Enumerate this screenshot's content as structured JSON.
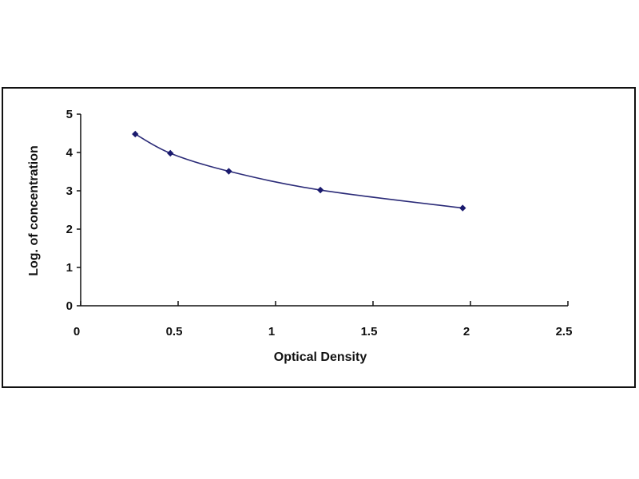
{
  "chart_data": {
    "type": "scatter",
    "xlabel": "Optical Density",
    "ylabel": "Log. of concentration",
    "xlim": [
      0,
      2.5
    ],
    "ylim": [
      0,
      5
    ],
    "x_ticks": [
      "0",
      "0.5",
      "1",
      "1.5",
      "2",
      "2.5"
    ],
    "y_ticks": [
      "0",
      "1",
      "2",
      "3",
      "4",
      "5"
    ],
    "grid": false,
    "legend": "none",
    "series": [
      {
        "x": [
          0.28,
          0.46,
          0.76,
          1.23,
          1.96
        ],
        "y": [
          4.48,
          3.98,
          3.51,
          3.02,
          2.55
        ],
        "color": "#1a1a6e",
        "trendline": "smooth curve"
      }
    ]
  }
}
